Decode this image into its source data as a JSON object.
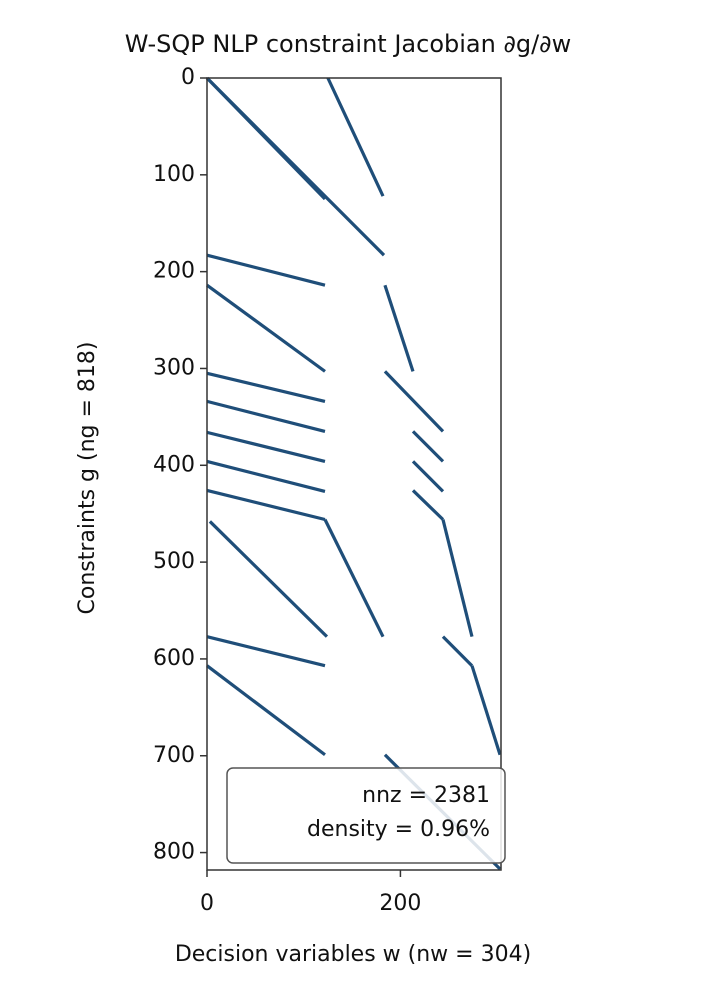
{
  "chart_data": {
    "type": "spy",
    "title": "W-SQP NLP constraint Jacobian  ∂g/∂w",
    "x_label": "Decision variables  w  (nw = 304)",
    "y_label": "Constraints  g  (ng = 818)",
    "annotation": {
      "nnz": "nnz  = 2381",
      "density": "density  = 0.96%"
    },
    "color": "#1f4e79",
    "xlim": [
      0,
      304
    ],
    "ylim": [
      818,
      0
    ],
    "xticks": [
      0,
      200
    ],
    "yticks": [
      0,
      100,
      200,
      300,
      400,
      500,
      600,
      700,
      800
    ],
    "segments": [
      {
        "x": [
          0,
          122
        ],
        "y": [
          0,
          125
        ]
      },
      {
        "x": [
          0,
          183
        ],
        "y": [
          0,
          183
        ]
      },
      {
        "x": [
          125,
          182
        ],
        "y": [
          0,
          122
        ]
      },
      {
        "x": [
          0,
          122
        ],
        "y": [
          183,
          214
        ]
      },
      {
        "x": [
          0,
          122
        ],
        "y": [
          214,
          303
        ]
      },
      {
        "x": [
          184,
          213
        ],
        "y": [
          214,
          303
        ]
      },
      {
        "x": [
          0,
          122
        ],
        "y": [
          305,
          334
        ]
      },
      {
        "x": [
          0,
          122
        ],
        "y": [
          334,
          365
        ]
      },
      {
        "x": [
          0,
          122
        ],
        "y": [
          366,
          396
        ]
      },
      {
        "x": [
          0,
          122
        ],
        "y": [
          396,
          427
        ]
      },
      {
        "x": [
          0,
          122
        ],
        "y": [
          426,
          456
        ]
      },
      {
        "x": [
          3,
          124
        ],
        "y": [
          458,
          577
        ]
      },
      {
        "x": [
          122,
          182
        ],
        "y": [
          456,
          577
        ]
      },
      {
        "x": [
          184,
          244
        ],
        "y": [
          303,
          365
        ]
      },
      {
        "x": [
          213,
          244
        ],
        "y": [
          365,
          396
        ]
      },
      {
        "x": [
          213,
          244
        ],
        "y": [
          396,
          427
        ]
      },
      {
        "x": [
          213,
          244
        ],
        "y": [
          426,
          456
        ]
      },
      {
        "x": [
          244,
          274
        ],
        "y": [
          456,
          577
        ]
      },
      {
        "x": [
          0,
          122
        ],
        "y": [
          577,
          607
        ]
      },
      {
        "x": [
          0,
          122
        ],
        "y": [
          607,
          699
        ]
      },
      {
        "x": [
          244,
          274
        ],
        "y": [
          577,
          607
        ]
      },
      {
        "x": [
          274,
          303
        ],
        "y": [
          607,
          699
        ]
      },
      {
        "x": [
          184,
          303
        ],
        "y": [
          699,
          817
        ]
      }
    ]
  }
}
